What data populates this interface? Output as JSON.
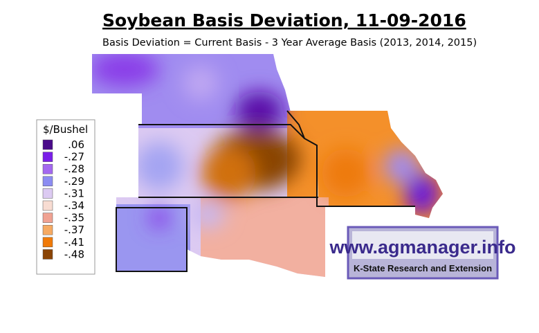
{
  "header": {
    "title": "Soybean Basis Deviation, 11-09-2016",
    "subtitle": "Basis Deviation = Current Basis - 3 Year Average Basis (2013, 2014, 2015)"
  },
  "legend": {
    "title": "$/Bushel",
    "items": [
      {
        "label": ".06",
        "color": "#4a0a8a"
      },
      {
        "label": "-.27",
        "color": "#7a1ee8"
      },
      {
        "label": "-.28",
        "color": "#a468f0"
      },
      {
        "label": "-.29",
        "color": "#8c8cf2"
      },
      {
        "label": "-.31",
        "color": "#dccaf2"
      },
      {
        "label": "-.34",
        "color": "#f8dcd2"
      },
      {
        "label": "-.35",
        "color": "#f0a292"
      },
      {
        "label": "-.37",
        "color": "#f6aa62"
      },
      {
        "label": "-.41",
        "color": "#f07a08"
      },
      {
        "label": "-.48",
        "color": "#8a4404"
      }
    ]
  },
  "logo": {
    "url": "www.agmanager.info",
    "org": "K-State Research and Extension"
  }
}
